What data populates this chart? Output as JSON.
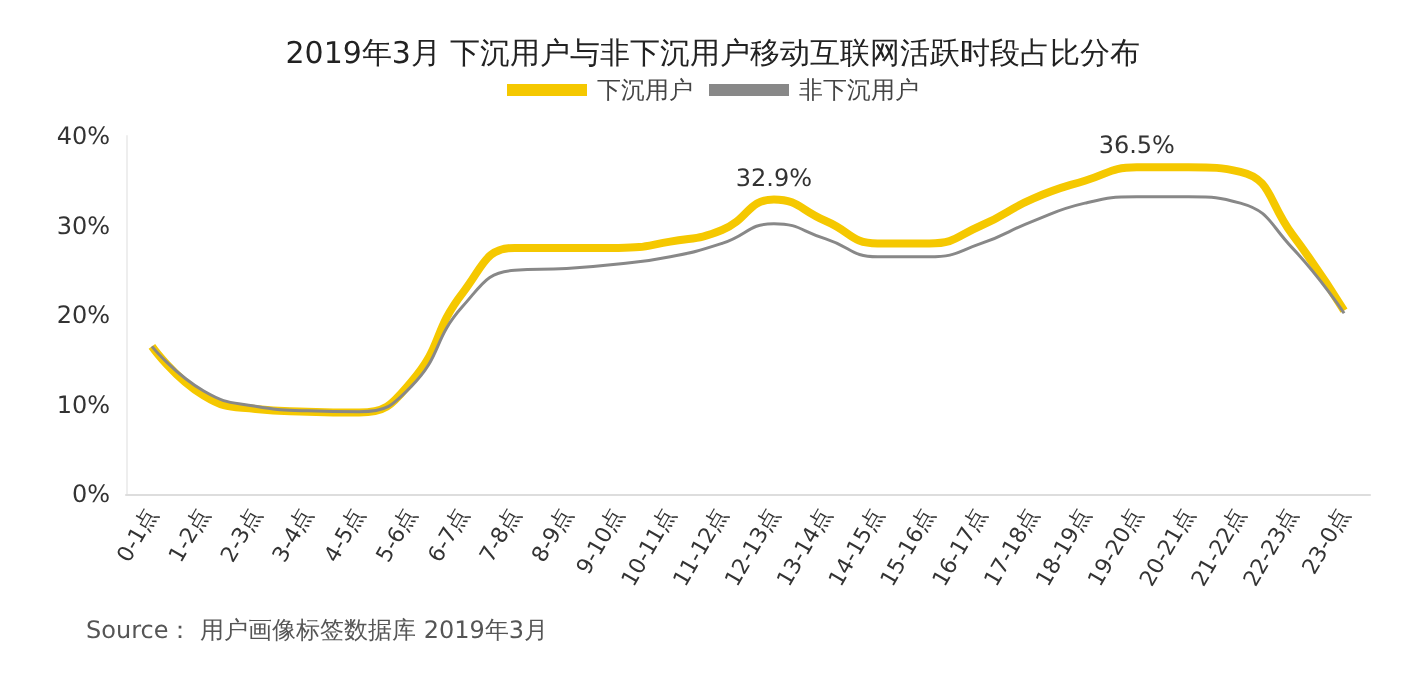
{
  "chart_data": {
    "type": "line",
    "title": "2019年3月 下沉用户与非下沉用户移动互联网活跃时段占比分布",
    "categories": [
      "0-1点",
      "1-2点",
      "2-3点",
      "3-4点",
      "4-5点",
      "5-6点",
      "6-7点",
      "7-8点",
      "8-9点",
      "9-10点",
      "10-11点",
      "11-12点",
      "12-13点",
      "13-14点",
      "14-15点",
      "15-16点",
      "16-17点",
      "17-18点",
      "18-19点",
      "19-20点",
      "20-21点",
      "21-22点",
      "22-23点",
      "23-0点"
    ],
    "series": [
      {
        "name": "下沉用户",
        "color": "#f5c800",
        "values": [
          16.5,
          11,
          9.5,
          9.2,
          9.1,
          12.5,
          22.5,
          27.5,
          27.5,
          27.5,
          28.2,
          29.5,
          32.9,
          30.5,
          28,
          28,
          30,
          33,
          35,
          36.5,
          36.5,
          36,
          29,
          20.5
        ],
        "value_labels": [
          null,
          null,
          null,
          null,
          null,
          null,
          null,
          null,
          null,
          null,
          null,
          null,
          "32.9%",
          null,
          null,
          null,
          null,
          null,
          null,
          "36.5%",
          null,
          null,
          null,
          null
        ]
      },
      {
        "name": "非下沉用户",
        "color": "#888888",
        "values": [
          16.5,
          11.5,
          9.8,
          9.3,
          9.2,
          12,
          21,
          25,
          25.2,
          25.7,
          26.5,
          28,
          30.2,
          28.5,
          26.5,
          26.5,
          28,
          30.5,
          32.5,
          33.2,
          33.2,
          32.5,
          27.5,
          20.2
        ]
      }
    ],
    "ylim": [
      0,
      40
    ],
    "yticks": [
      {
        "value": 0,
        "label": "0%"
      },
      {
        "value": 10,
        "label": "10%"
      },
      {
        "value": 20,
        "label": "20%"
      },
      {
        "value": 30,
        "label": "30%"
      },
      {
        "value": 40,
        "label": "40%"
      }
    ],
    "grid": false,
    "legend": "top",
    "marker": "none",
    "annotations": [
      "Source： 用户画像标签数据库 2019年3月"
    ]
  }
}
